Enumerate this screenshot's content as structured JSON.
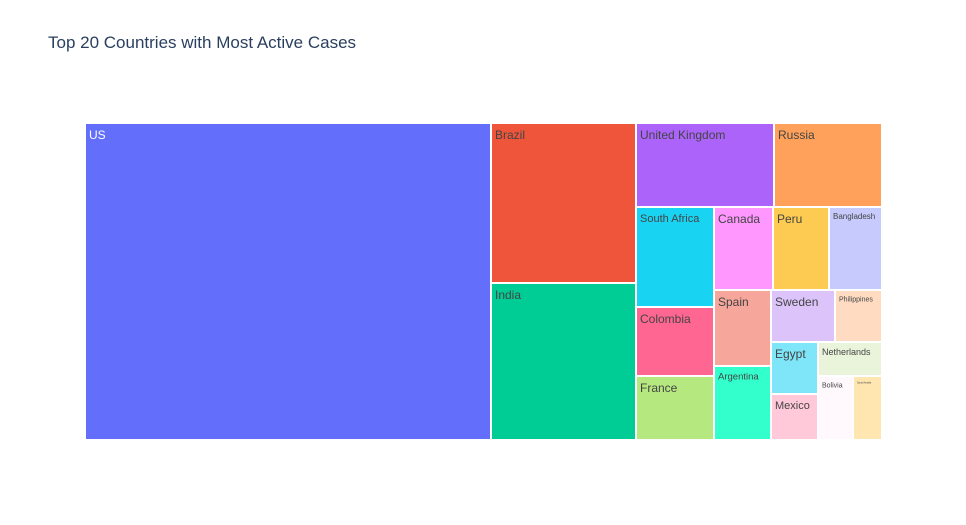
{
  "chart_data": {
    "type": "treemap",
    "title": "Top 20 Countries with Most Active Cases",
    "tiles": [
      {
        "label": "US",
        "color": "#636efa",
        "text_color": "#ffffff"
      },
      {
        "label": "Brazil",
        "color": "#ef553b",
        "text_color": "#444444"
      },
      {
        "label": "India",
        "color": "#00cc96",
        "text_color": "#444444"
      },
      {
        "label": "United Kingdom",
        "color": "#ab63fa",
        "text_color": "#444444"
      },
      {
        "label": "Russia",
        "color": "#ffa15a",
        "text_color": "#444444"
      },
      {
        "label": "South Africa",
        "color": "#19d3f3",
        "text_color": "#444444"
      },
      {
        "label": "Canada",
        "color": "#ff97ff",
        "text_color": "#444444"
      },
      {
        "label": "Peru",
        "color": "#fecb52",
        "text_color": "#444444"
      },
      {
        "label": "Bangladesh",
        "color": "#c6cafd",
        "text_color": "#444444"
      },
      {
        "label": "Colombia",
        "color": "#ff6692",
        "text_color": "#444444"
      },
      {
        "label": "Spain",
        "color": "#f6a69a",
        "text_color": "#444444"
      },
      {
        "label": "Sweden",
        "color": "#dcc4fb",
        "text_color": "#444444"
      },
      {
        "label": "Philippines",
        "color": "#ffdbc1",
        "text_color": "#444444"
      },
      {
        "label": "France",
        "color": "#b6e880",
        "text_color": "#444444"
      },
      {
        "label": "Argentina",
        "color": "#33ffcc",
        "text_color": "#444444"
      },
      {
        "label": "Egypt",
        "color": "#7ee6f8",
        "text_color": "#444444"
      },
      {
        "label": "Netherlands",
        "color": "#e9f4da",
        "text_color": "#444444"
      },
      {
        "label": "Mexico",
        "color": "#ffc9d9",
        "text_color": "#444444"
      },
      {
        "label": "Bolivia",
        "color": "#fff9fe",
        "text_color": "#444444"
      },
      {
        "label": "Saudi Arabia",
        "color": "#ffe6b0",
        "text_color": "#444444"
      }
    ]
  }
}
